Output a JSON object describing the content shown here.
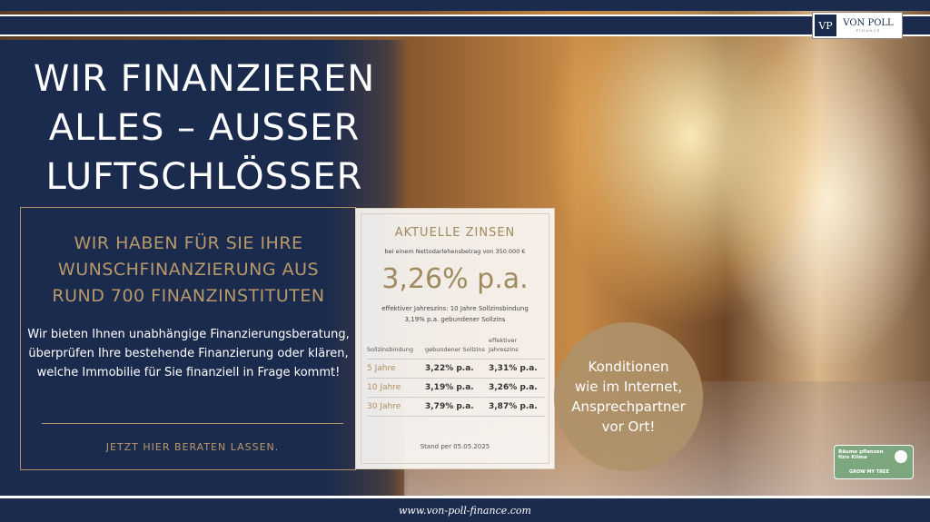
{
  "brand": {
    "monogram": "VP",
    "name": "VON POLL",
    "sub": "FINANCE"
  },
  "headline": [
    "WIR FINANZIEREN",
    "ALLES – AUSSER",
    "LUFTSCHLÖSSER"
  ],
  "offer": {
    "heading": [
      "WIR HABEN FÜR SIE IHRE",
      "WUNSCHFINANZIERUNG AUS",
      "RUND 700 FINANZINSTITUTEN"
    ],
    "description": "Wir bieten Ihnen unabhängige Finanzierungsberatung, überprüfen Ihre bestehende Finanzierung oder klären, welche Immobilie für Sie finanziell in Frage kommt!",
    "cta": "JETZT HIER BERATEN LASSEN."
  },
  "rates": {
    "title": "AKTUELLE ZINSEN",
    "subtitle": "bei einem Nettodarlehensbetrag von 350.000 €",
    "headline_rate": "3,26% p.a.",
    "note1": "effektiver Jahreszins: 10 Jahre Sollzinsbindung",
    "note2": "3,19% p.a. gebundener Sollzins",
    "columns": [
      "Sollzinsbindung",
      "gebundener Sollzins",
      "effektiver Jahreszins"
    ],
    "rows": [
      [
        "5 Jahre",
        "3,22% p.a.",
        "3,31% p.a."
      ],
      [
        "10 Jahre",
        "3,19% p.a.",
        "3,26% p.a."
      ],
      [
        "30 Jahre",
        "3,79% p.a.",
        "3,87% p.a."
      ]
    ],
    "as_of": "Stand per 05.05.2025"
  },
  "circle": {
    "text": [
      "Konditionen",
      "wie im Internet,",
      "Ansprechpartner",
      "vor Ort!"
    ]
  },
  "badge": {
    "line1": "Bäume pflanzen",
    "line2": "fürs Klima",
    "brand": "GROW MY TREE"
  },
  "footer": {
    "url": "www.von-poll-finance.com"
  },
  "colors": {
    "navy": "#1b2b4d",
    "gold": "#b8996a"
  }
}
